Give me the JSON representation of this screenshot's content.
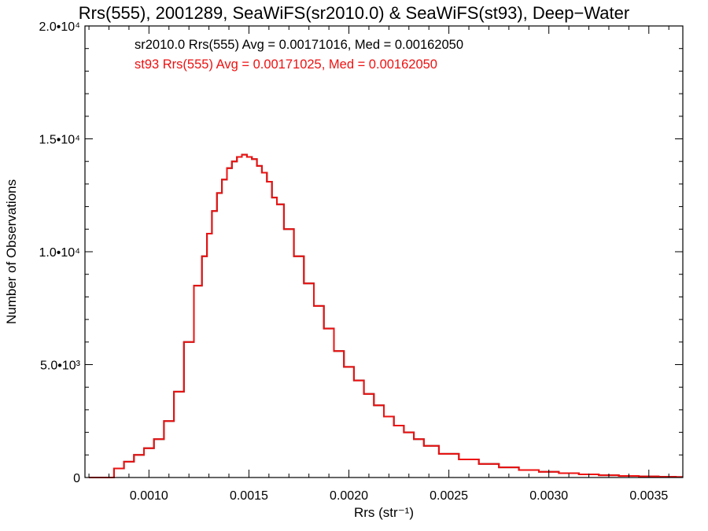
{
  "chart_data": {
    "type": "histogram-step",
    "title": "Rrs(555), 2001289, SeaWiFS(sr2010.0) & SeaWiFS(st93), Deep−Water",
    "xlabel": "Rrs (str⁻¹)",
    "ylabel": "Number of Observations",
    "xlim": [
      0.00068,
      0.00367
    ],
    "ylim": [
      0,
      20000
    ],
    "x_ticks": [
      0.001,
      0.0015,
      0.002,
      0.0025,
      0.003,
      0.0035
    ],
    "x_tick_labels": [
      "0.0010",
      "0.0015",
      "0.0020",
      "0.0025",
      "0.0030",
      "0.0035"
    ],
    "y_ticks": [
      0,
      5000,
      10000,
      15000,
      20000
    ],
    "y_tick_labels": [
      "0",
      "5.0•10³",
      "1.0•10⁴",
      "1.5•10⁴",
      "2.0•10⁴"
    ],
    "grid": false,
    "annotations": [
      {
        "text": "sr2010.0 Rrs(555) Avg = 0.00171016, Med = 0.00162050",
        "color": "#000000"
      },
      {
        "text": "st93 Rrs(555) Avg = 0.00171025, Med = 0.00162050",
        "color": "#ee1111"
      }
    ],
    "series": [
      {
        "name": "sr2010.0",
        "color": "#000000",
        "x": [
          0.0007,
          0.00075,
          0.0008,
          0.00085,
          0.0009,
          0.00095,
          0.001,
          0.00105,
          0.0011,
          0.00115,
          0.0012,
          0.00125,
          0.00128,
          0.0013,
          0.00133,
          0.00135,
          0.00138,
          0.0014,
          0.00143,
          0.00145,
          0.00148,
          0.0015,
          0.00153,
          0.00155,
          0.00158,
          0.0016,
          0.00163,
          0.00165,
          0.0017,
          0.00175,
          0.0018,
          0.00185,
          0.0019,
          0.00195,
          0.002,
          0.00205,
          0.0021,
          0.00215,
          0.0022,
          0.00225,
          0.0023,
          0.00235,
          0.0024,
          0.0025,
          0.0026,
          0.0027,
          0.0028,
          0.0029,
          0.003,
          0.0031,
          0.0032,
          0.0033,
          0.0034,
          0.0035,
          0.0036,
          0.00367
        ],
        "y": [
          0,
          0,
          0,
          400,
          700,
          1000,
          1300,
          1700,
          2500,
          3800,
          6000,
          8500,
          9800,
          10800,
          11800,
          12600,
          13200,
          13700,
          14000,
          14200,
          14300,
          14200,
          14100,
          13800,
          13500,
          13100,
          12400,
          12100,
          11000,
          9800,
          8600,
          7600,
          6600,
          5600,
          4900,
          4300,
          3700,
          3200,
          2700,
          2300,
          2000,
          1700,
          1400,
          1050,
          800,
          600,
          450,
          330,
          250,
          190,
          140,
          100,
          70,
          50,
          30,
          20
        ]
      },
      {
        "name": "st93",
        "color": "#ee1111",
        "x": [
          0.0007,
          0.00075,
          0.0008,
          0.00085,
          0.0009,
          0.00095,
          0.001,
          0.00105,
          0.0011,
          0.00115,
          0.0012,
          0.00125,
          0.00128,
          0.0013,
          0.00133,
          0.00135,
          0.00138,
          0.0014,
          0.00143,
          0.00145,
          0.00148,
          0.0015,
          0.00153,
          0.00155,
          0.00158,
          0.0016,
          0.00163,
          0.00165,
          0.0017,
          0.00175,
          0.0018,
          0.00185,
          0.0019,
          0.00195,
          0.002,
          0.00205,
          0.0021,
          0.00215,
          0.0022,
          0.00225,
          0.0023,
          0.00235,
          0.0024,
          0.0025,
          0.0026,
          0.0027,
          0.0028,
          0.0029,
          0.003,
          0.0031,
          0.0032,
          0.0033,
          0.0034,
          0.0035,
          0.0036,
          0.00367
        ],
        "y": [
          0,
          0,
          0,
          400,
          700,
          1000,
          1300,
          1700,
          2500,
          3800,
          6000,
          8500,
          9800,
          10800,
          11800,
          12600,
          13200,
          13700,
          14000,
          14200,
          14300,
          14200,
          14100,
          13800,
          13500,
          13100,
          12400,
          12100,
          11000,
          9800,
          8600,
          7600,
          6600,
          5600,
          4900,
          4300,
          3700,
          3200,
          2700,
          2300,
          2000,
          1700,
          1400,
          1050,
          800,
          600,
          450,
          330,
          250,
          190,
          140,
          100,
          70,
          50,
          30,
          20
        ]
      }
    ]
  }
}
